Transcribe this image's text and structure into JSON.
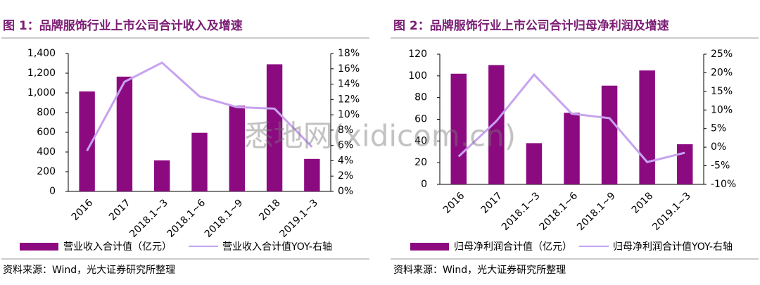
{
  "chart_data": [
    {
      "type": "bar-line",
      "title": "图 1：品牌服饰行业上市公司合计收入及增速",
      "categories": [
        "2016",
        "2017",
        "2018.1~3",
        "2018.1~6",
        "2018.1~9",
        "2018",
        "2019.1~3"
      ],
      "series": [
        {
          "name": "营业收入合计值（亿元）",
          "type": "bar",
          "color": "#8c0a80",
          "values": [
            1015,
            1165,
            315,
            595,
            870,
            1290,
            330
          ]
        },
        {
          "name": "营业收入合计值YOY-右轴",
          "type": "line",
          "axis": "y2",
          "color": "#c7a3ef",
          "values": [
            5.3,
            14.3,
            16.8,
            12.4,
            11.0,
            10.8,
            5.8
          ]
        }
      ],
      "ylim": [
        0,
        1400
      ],
      "yticks": [
        0,
        200,
        400,
        600,
        800,
        {
          "value": 1000,
          "label": "1,000"
        },
        {
          "value": 1200,
          "label": "1,200"
        },
        {
          "value": 1400,
          "label": "1,400"
        }
      ],
      "y2lim": [
        0,
        18
      ],
      "y2ticks": [
        {
          "value": 0,
          "label": "0%"
        },
        {
          "value": 2,
          "label": "2%"
        },
        {
          "value": 4,
          "label": "4%"
        },
        {
          "value": 6,
          "label": "6%"
        },
        {
          "value": 8,
          "label": "8%"
        },
        {
          "value": 10,
          "label": "10%"
        },
        {
          "value": 12,
          "label": "12%"
        },
        {
          "value": 14,
          "label": "14%"
        },
        {
          "value": 16,
          "label": "16%"
        },
        {
          "value": 18,
          "label": "18%"
        }
      ],
      "source": "资料来源：Wind，光大证券研究所整理"
    },
    {
      "type": "bar-line",
      "title": "图 2：品牌服饰行业上市公司合计归母净利润及增速",
      "categories": [
        "2016",
        "2017",
        "2018.1~3",
        "2018.1~6",
        "2018.1~9",
        "2018",
        "2019.1~3"
      ],
      "series": [
        {
          "name": "归母净利润合计值（亿元）",
          "type": "bar",
          "color": "#8c0a80",
          "values": [
            102,
            110,
            38,
            66,
            91,
            105,
            37
          ]
        },
        {
          "name": "归母净利润合计值YOY-右轴",
          "type": "line",
          "axis": "y2",
          "color": "#c7a3ef",
          "values": [
            -2.5,
            7,
            19.5,
            9,
            7.8,
            -4,
            -1.5
          ]
        }
      ],
      "ylim": [
        0,
        120
      ],
      "yticks": [
        0,
        20,
        40,
        60,
        80,
        100,
        120
      ],
      "y2lim": [
        -10,
        25
      ],
      "y2ticks": [
        {
          "value": -10,
          "label": "-10%"
        },
        {
          "value": -5,
          "label": "-5%"
        },
        {
          "value": 0,
          "label": "0%"
        },
        {
          "value": 5,
          "label": "5%"
        },
        {
          "value": 10,
          "label": "10%"
        },
        {
          "value": 15,
          "label": "15%"
        },
        {
          "value": 20,
          "label": "20%"
        },
        {
          "value": 25,
          "label": "25%"
        }
      ],
      "source": "资料来源：Wind，光大证券研究所整理"
    }
  ],
  "watermark": "悉地网(xidicom.cn)"
}
